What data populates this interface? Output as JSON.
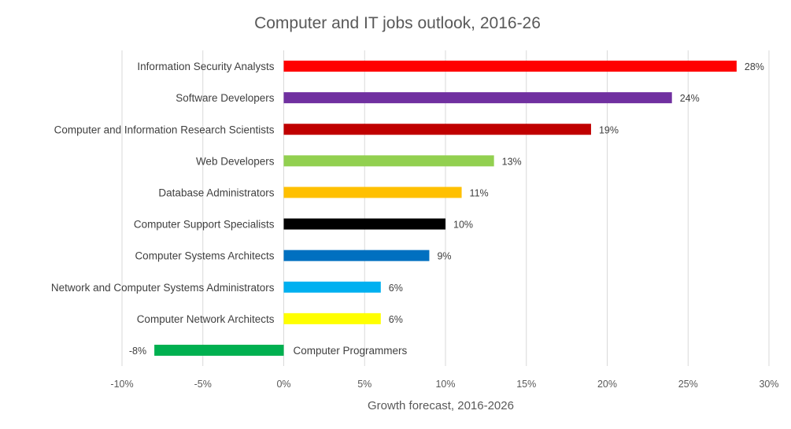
{
  "chart_data": {
    "type": "bar",
    "orientation": "horizontal",
    "title": "Computer and IT jobs outlook, 2016-26",
    "xlabel": "Growth forecast, 2016-2026",
    "ylabel": "",
    "xlim": [
      -10,
      30
    ],
    "xticks": [
      -10,
      -5,
      0,
      5,
      10,
      15,
      20,
      25,
      30
    ],
    "xtick_labels": [
      "-10%",
      "-5%",
      "0%",
      "5%",
      "10%",
      "15%",
      "20%",
      "25%",
      "30%"
    ],
    "grid": "vertical",
    "legend": "none",
    "categories": [
      "Information Security Analysts",
      "Software Developers",
      "Computer and Information Research Scientists",
      "Web Developers",
      "Database Administrators",
      "Computer Support Specialists",
      "Computer Systems Architects",
      "Network and Computer Systems Administrators",
      "Computer Network Architects",
      "Computer Programmers"
    ],
    "values": [
      28,
      24,
      19,
      13,
      11,
      10,
      9,
      6,
      6,
      -8
    ],
    "value_labels": [
      "28%",
      "24%",
      "19%",
      "13%",
      "11%",
      "10%",
      "9%",
      "6%",
      "6%",
      "-8%"
    ],
    "colors": [
      "#ff0000",
      "#7030a0",
      "#c00000",
      "#92d050",
      "#ffc000",
      "#000000",
      "#0070c0",
      "#00b0f0",
      "#ffff00",
      "#00b050"
    ]
  }
}
